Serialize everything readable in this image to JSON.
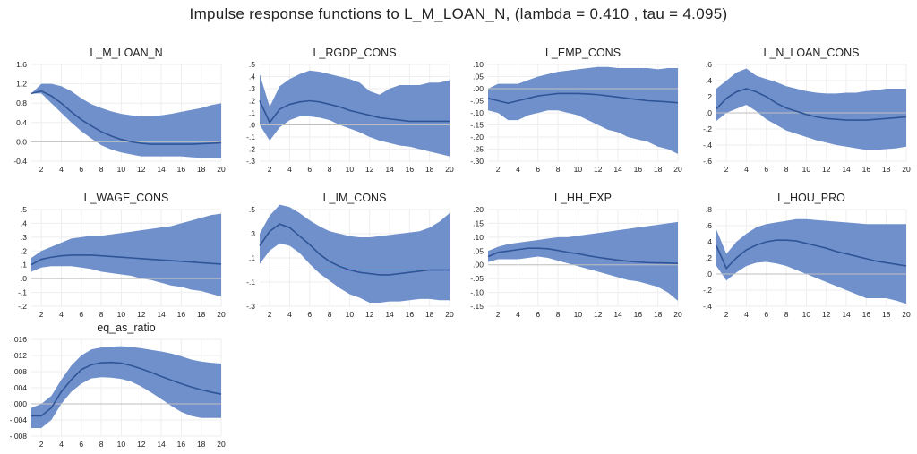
{
  "title": "Impulse response functions  to L_M_LOAN_N, (lambda = 0.410 , tau = 4.095)",
  "colors": {
    "band": "#7090cc",
    "line": "#2f5597",
    "zero": "#bfbfbf",
    "grid": "#eeeeee"
  },
  "chart_data": [
    {
      "type": "area",
      "title": "L_M_LOAN_N",
      "x": [
        1,
        2,
        3,
        4,
        5,
        6,
        7,
        8,
        9,
        10,
        11,
        12,
        13,
        14,
        15,
        16,
        17,
        18,
        19,
        20
      ],
      "ylim": [
        -0.4,
        1.6
      ],
      "yticks": [
        -0.4,
        0.0,
        0.4,
        0.8,
        1.2,
        1.6
      ],
      "ytick_labels": [
        "-0.4",
        "0.0",
        "0.4",
        "0.8",
        "1.2",
        "1.6"
      ],
      "median": [
        1.0,
        1.05,
        0.95,
        0.8,
        0.62,
        0.46,
        0.33,
        0.21,
        0.12,
        0.05,
        0.0,
        -0.03,
        -0.05,
        -0.05,
        -0.05,
        -0.05,
        -0.05,
        -0.04,
        -0.03,
        -0.02
      ],
      "upper": [
        1.0,
        1.2,
        1.2,
        1.15,
        1.05,
        0.9,
        0.78,
        0.7,
        0.63,
        0.58,
        0.55,
        0.53,
        0.53,
        0.55,
        0.58,
        0.62,
        0.66,
        0.7,
        0.76,
        0.8
      ],
      "lower": [
        1.0,
        1.0,
        0.8,
        0.6,
        0.4,
        0.22,
        0.07,
        -0.07,
        -0.16,
        -0.22,
        -0.26,
        -0.3,
        -0.3,
        -0.3,
        -0.3,
        -0.3,
        -0.32,
        -0.33,
        -0.33,
        -0.34
      ]
    },
    {
      "type": "area",
      "title": "L_RGDP_CONS",
      "x": [
        1,
        2,
        3,
        4,
        5,
        6,
        7,
        8,
        9,
        10,
        11,
        12,
        13,
        14,
        15,
        16,
        17,
        18,
        19,
        20
      ],
      "ylim": [
        -0.3,
        0.5
      ],
      "yticks": [
        -0.3,
        -0.2,
        -0.1,
        0.0,
        0.1,
        0.2,
        0.3,
        0.4,
        0.5
      ],
      "ytick_labels": [
        "-.3",
        "-.2",
        "-.1",
        ".0",
        ".1",
        ".2",
        ".3",
        ".4",
        ".5"
      ],
      "median": [
        0.2,
        0.02,
        0.13,
        0.17,
        0.19,
        0.2,
        0.19,
        0.17,
        0.15,
        0.12,
        0.1,
        0.08,
        0.06,
        0.05,
        0.04,
        0.03,
        0.03,
        0.03,
        0.03,
        0.03
      ],
      "upper": [
        0.42,
        0.15,
        0.32,
        0.38,
        0.42,
        0.45,
        0.44,
        0.42,
        0.4,
        0.38,
        0.35,
        0.28,
        0.25,
        0.3,
        0.33,
        0.33,
        0.33,
        0.35,
        0.35,
        0.37
      ],
      "lower": [
        0.0,
        -0.13,
        -0.02,
        0.04,
        0.07,
        0.07,
        0.06,
        0.04,
        0.0,
        -0.03,
        -0.06,
        -0.1,
        -0.13,
        -0.15,
        -0.17,
        -0.18,
        -0.2,
        -0.22,
        -0.24,
        -0.26
      ]
    },
    {
      "type": "area",
      "title": "L_EMP_CONS",
      "x": [
        1,
        2,
        3,
        4,
        5,
        6,
        7,
        8,
        9,
        10,
        11,
        12,
        13,
        14,
        15,
        16,
        17,
        18,
        19,
        20
      ],
      "ylim": [
        -0.3,
        0.1
      ],
      "yticks": [
        -0.3,
        -0.25,
        -0.2,
        -0.15,
        -0.1,
        -0.05,
        0.0,
        0.05,
        0.1
      ],
      "ytick_labels": [
        "-.30",
        "-.25",
        "-.20",
        "-.15",
        "-.10",
        "-.05",
        ".00",
        ".05",
        ".10"
      ],
      "median": [
        -0.04,
        -0.05,
        -0.06,
        -0.05,
        -0.04,
        -0.03,
        -0.025,
        -0.02,
        -0.02,
        -0.02,
        -0.022,
        -0.025,
        -0.03,
        -0.035,
        -0.04,
        -0.045,
        -0.05,
        -0.052,
        -0.055,
        -0.058
      ],
      "upper": [
        0.0,
        0.02,
        0.02,
        0.02,
        0.035,
        0.05,
        0.06,
        0.07,
        0.075,
        0.08,
        0.085,
        0.09,
        0.09,
        0.085,
        0.085,
        0.085,
        0.085,
        0.08,
        0.085,
        0.085
      ],
      "lower": [
        -0.09,
        -0.1,
        -0.13,
        -0.13,
        -0.11,
        -0.1,
        -0.09,
        -0.09,
        -0.1,
        -0.11,
        -0.13,
        -0.15,
        -0.17,
        -0.18,
        -0.2,
        -0.21,
        -0.22,
        -0.24,
        -0.25,
        -0.27
      ]
    },
    {
      "type": "area",
      "title": "L_N_LOAN_CONS",
      "x": [
        1,
        2,
        3,
        4,
        5,
        6,
        7,
        8,
        9,
        10,
        11,
        12,
        13,
        14,
        15,
        16,
        17,
        18,
        19,
        20
      ],
      "ylim": [
        -0.6,
        0.6
      ],
      "yticks": [
        -0.6,
        -0.4,
        -0.2,
        0.0,
        0.2,
        0.4,
        0.6
      ],
      "ytick_labels": [
        "-.6",
        "-.4",
        "-.2",
        ".0",
        ".2",
        ".4",
        ".6"
      ],
      "median": [
        0.05,
        0.18,
        0.26,
        0.3,
        0.26,
        0.2,
        0.12,
        0.06,
        0.02,
        -0.02,
        -0.05,
        -0.07,
        -0.08,
        -0.09,
        -0.09,
        -0.09,
        -0.08,
        -0.07,
        -0.06,
        -0.05
      ],
      "upper": [
        0.3,
        0.4,
        0.5,
        0.55,
        0.46,
        0.42,
        0.38,
        0.33,
        0.3,
        0.27,
        0.25,
        0.24,
        0.24,
        0.25,
        0.25,
        0.27,
        0.28,
        0.3,
        0.3,
        0.3
      ],
      "lower": [
        -0.1,
        0.0,
        0.05,
        0.1,
        0.02,
        -0.08,
        -0.15,
        -0.22,
        -0.26,
        -0.3,
        -0.34,
        -0.37,
        -0.4,
        -0.42,
        -0.44,
        -0.46,
        -0.46,
        -0.45,
        -0.44,
        -0.42
      ]
    },
    {
      "type": "area",
      "title": "L_WAGE_CONS",
      "x": [
        1,
        2,
        3,
        4,
        5,
        6,
        7,
        8,
        9,
        10,
        11,
        12,
        13,
        14,
        15,
        16,
        17,
        18,
        19,
        20
      ],
      "ylim": [
        -0.2,
        0.5
      ],
      "yticks": [
        -0.2,
        -0.1,
        0.0,
        0.1,
        0.2,
        0.3,
        0.4,
        0.5
      ],
      "ytick_labels": [
        "-.2",
        "-.1",
        ".0",
        ".1",
        ".2",
        ".3",
        ".4",
        ".5"
      ],
      "median": [
        0.1,
        0.14,
        0.155,
        0.165,
        0.17,
        0.17,
        0.17,
        0.165,
        0.16,
        0.155,
        0.15,
        0.145,
        0.14,
        0.135,
        0.13,
        0.125,
        0.12,
        0.115,
        0.11,
        0.105
      ],
      "upper": [
        0.15,
        0.2,
        0.23,
        0.26,
        0.29,
        0.3,
        0.31,
        0.31,
        0.32,
        0.33,
        0.34,
        0.35,
        0.36,
        0.37,
        0.38,
        0.4,
        0.42,
        0.44,
        0.46,
        0.47
      ],
      "lower": [
        0.05,
        0.08,
        0.09,
        0.09,
        0.09,
        0.08,
        0.07,
        0.05,
        0.04,
        0.03,
        0.02,
        0.0,
        -0.01,
        -0.03,
        -0.05,
        -0.06,
        -0.08,
        -0.09,
        -0.11,
        -0.13
      ]
    },
    {
      "type": "area",
      "title": "L_IM_CONS",
      "x": [
        1,
        2,
        3,
        4,
        5,
        6,
        7,
        8,
        9,
        10,
        11,
        12,
        13,
        14,
        15,
        16,
        17,
        18,
        19,
        20
      ],
      "ylim": [
        -0.3,
        0.5
      ],
      "yticks": [
        -0.3,
        -0.1,
        0.1,
        0.3,
        0.5
      ],
      "ytick_labels": [
        "-.3",
        "-.1",
        ".1",
        ".3",
        ".5"
      ],
      "median": [
        0.2,
        0.32,
        0.38,
        0.35,
        0.28,
        0.21,
        0.13,
        0.07,
        0.03,
        0.0,
        -0.02,
        -0.03,
        -0.04,
        -0.04,
        -0.03,
        -0.02,
        -0.01,
        0.0,
        0.0,
        0.0
      ],
      "upper": [
        0.3,
        0.45,
        0.54,
        0.52,
        0.47,
        0.41,
        0.36,
        0.32,
        0.3,
        0.28,
        0.27,
        0.27,
        0.28,
        0.29,
        0.3,
        0.31,
        0.32,
        0.35,
        0.4,
        0.47
      ],
      "lower": [
        0.05,
        0.16,
        0.22,
        0.2,
        0.14,
        0.05,
        -0.03,
        -0.09,
        -0.15,
        -0.2,
        -0.23,
        -0.27,
        -0.27,
        -0.26,
        -0.26,
        -0.25,
        -0.24,
        -0.24,
        -0.25,
        -0.25
      ]
    },
    {
      "type": "area",
      "title": "L_HH_EXP",
      "x": [
        1,
        2,
        3,
        4,
        5,
        6,
        7,
        8,
        9,
        10,
        11,
        12,
        13,
        14,
        15,
        16,
        17,
        18,
        19,
        20
      ],
      "ylim": [
        -0.15,
        0.2
      ],
      "yticks": [
        -0.15,
        -0.1,
        -0.05,
        0.0,
        0.05,
        0.1,
        0.15,
        0.2
      ],
      "ytick_labels": [
        "-.15",
        "-.10",
        "-.05",
        ".00",
        ".05",
        ".10",
        ".15",
        ".20"
      ],
      "median": [
        0.03,
        0.045,
        0.05,
        0.055,
        0.06,
        0.06,
        0.058,
        0.052,
        0.045,
        0.04,
        0.033,
        0.027,
        0.022,
        0.017,
        0.013,
        0.01,
        0.008,
        0.007,
        0.006,
        0.005
      ],
      "upper": [
        0.05,
        0.065,
        0.075,
        0.08,
        0.085,
        0.09,
        0.095,
        0.1,
        0.1,
        0.105,
        0.11,
        0.115,
        0.12,
        0.125,
        0.13,
        0.135,
        0.14,
        0.145,
        0.15,
        0.155
      ],
      "lower": [
        0.01,
        0.02,
        0.02,
        0.02,
        0.025,
        0.03,
        0.025,
        0.015,
        0.005,
        -0.005,
        -0.015,
        -0.025,
        -0.035,
        -0.045,
        -0.055,
        -0.06,
        -0.07,
        -0.08,
        -0.1,
        -0.13
      ]
    },
    {
      "type": "area",
      "title": "L_HOU_PRO",
      "x": [
        1,
        2,
        3,
        4,
        5,
        6,
        7,
        8,
        9,
        10,
        11,
        12,
        13,
        14,
        15,
        16,
        17,
        18,
        19,
        20
      ],
      "ylim": [
        -0.4,
        0.8
      ],
      "yticks": [
        -0.4,
        -0.2,
        0.0,
        0.2,
        0.4,
        0.6,
        0.8
      ],
      "ytick_labels": [
        "-.4",
        "-.2",
        ".0",
        ".2",
        ".4",
        ".6",
        ".8"
      ],
      "median": [
        0.35,
        0.07,
        0.2,
        0.3,
        0.36,
        0.4,
        0.42,
        0.42,
        0.41,
        0.38,
        0.35,
        0.32,
        0.28,
        0.25,
        0.22,
        0.19,
        0.16,
        0.14,
        0.12,
        0.1
      ],
      "upper": [
        0.55,
        0.25,
        0.4,
        0.5,
        0.58,
        0.62,
        0.64,
        0.66,
        0.68,
        0.68,
        0.67,
        0.66,
        0.65,
        0.64,
        0.63,
        0.62,
        0.62,
        0.62,
        0.62,
        0.62
      ],
      "lower": [
        0.1,
        -0.08,
        0.02,
        0.1,
        0.14,
        0.15,
        0.13,
        0.1,
        0.05,
        0.0,
        -0.05,
        -0.1,
        -0.15,
        -0.2,
        -0.25,
        -0.3,
        -0.3,
        -0.3,
        -0.33,
        -0.37
      ]
    },
    {
      "type": "area",
      "title": "eq_as_ratio",
      "x": [
        1,
        2,
        3,
        4,
        5,
        6,
        7,
        8,
        9,
        10,
        11,
        12,
        13,
        14,
        15,
        16,
        17,
        18,
        19,
        20
      ],
      "ylim": [
        -0.008,
        0.016
      ],
      "yticks": [
        -0.008,
        -0.004,
        0.0,
        0.004,
        0.008,
        0.012,
        0.016
      ],
      "ytick_labels": [
        "-.008",
        "-.004",
        ".000",
        ".004",
        ".008",
        ".012",
        ".016"
      ],
      "median": [
        -0.003,
        -0.003,
        -0.001,
        0.003,
        0.006,
        0.0085,
        0.0097,
        0.0102,
        0.0103,
        0.0101,
        0.0095,
        0.0087,
        0.0078,
        0.0068,
        0.0059,
        0.005,
        0.0042,
        0.0035,
        0.0029,
        0.0024
      ],
      "upper": [
        -0.001,
        0.0,
        0.002,
        0.006,
        0.0095,
        0.012,
        0.0135,
        0.014,
        0.0142,
        0.0143,
        0.0141,
        0.0138,
        0.0134,
        0.013,
        0.0125,
        0.0118,
        0.011,
        0.0105,
        0.0102,
        0.01
      ],
      "lower": [
        -0.006,
        -0.006,
        -0.004,
        0.0,
        0.003,
        0.005,
        0.0063,
        0.0066,
        0.0065,
        0.0062,
        0.0055,
        0.0043,
        0.0028,
        0.0012,
        -0.0005,
        -0.002,
        -0.003,
        -0.0035,
        -0.0035,
        -0.0035
      ]
    }
  ]
}
